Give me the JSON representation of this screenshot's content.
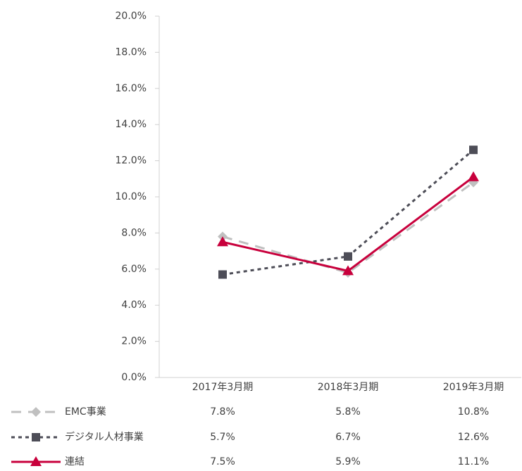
{
  "chart_data": {
    "type": "line",
    "categories": [
      "2017年3月期",
      "2018年3月期",
      "2019年3月期"
    ],
    "series": [
      {
        "name": "EMC事業",
        "color": "#c0c0c0",
        "dash": "dashed",
        "marker": "diamond",
        "values": [
          7.8,
          5.8,
          10.8
        ],
        "value_labels": [
          "7.8%",
          "5.8%",
          "10.8%"
        ]
      },
      {
        "name": "デジタル人材事業",
        "color": "#4d4d57",
        "dash": "dotted",
        "marker": "square",
        "values": [
          5.7,
          6.7,
          12.6
        ],
        "value_labels": [
          "5.7%",
          "6.7%",
          "12.6%"
        ]
      },
      {
        "name": "連結",
        "color": "#c8003c",
        "dash": "solid",
        "marker": "triangle",
        "values": [
          7.5,
          5.9,
          11.1
        ],
        "value_labels": [
          "7.5%",
          "5.9%",
          "11.1%"
        ]
      }
    ],
    "ylim": [
      0,
      20
    ],
    "yticks": [
      {
        "value": 0,
        "label": "0.0%"
      },
      {
        "value": 2,
        "label": "2.0%"
      },
      {
        "value": 4,
        "label": "4.0%"
      },
      {
        "value": 6,
        "label": "6.0%"
      },
      {
        "value": 8,
        "label": "8.0%"
      },
      {
        "value": 10,
        "label": "10.0%"
      },
      {
        "value": 12,
        "label": "12.0%"
      },
      {
        "value": 14,
        "label": "14.0%"
      },
      {
        "value": 16,
        "label": "16.0%"
      },
      {
        "value": 18,
        "label": "18.0%"
      },
      {
        "value": 20,
        "label": "20.0%"
      }
    ],
    "grid": false
  }
}
